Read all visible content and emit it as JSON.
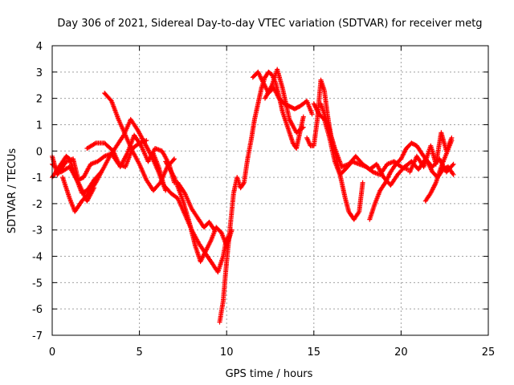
{
  "chart_data": {
    "type": "scatter",
    "title": "Day 306 of 2021, Sidereal Day-to-day VTEC variation (SDTVAR) for receiver metg",
    "xlabel": "GPS time / hours",
    "ylabel": "SDTVAR / TECUs",
    "xlim": [
      0,
      25
    ],
    "ylim": [
      -7,
      4
    ],
    "xticks": [
      "0",
      "5",
      "10",
      "15",
      "20",
      "25"
    ],
    "yticks": [
      "-7",
      "-6",
      "-5",
      "-4",
      "-3",
      "-2",
      "-1",
      "0",
      "1",
      "2",
      "3",
      "4"
    ],
    "grid": true,
    "marker": "+",
    "series": [
      {
        "name": "SDTVAR",
        "color": "#ff0000",
        "tracks": [
          [
            [
              0.0,
              -0.2
            ],
            [
              0.3,
              -0.9
            ],
            [
              0.8,
              -0.4
            ],
            [
              1.2,
              -0.3
            ],
            [
              1.5,
              -1.1
            ],
            [
              1.8,
              -1.0
            ],
            [
              2.2,
              -0.5
            ],
            [
              2.6,
              -0.4
            ],
            [
              3.0,
              -0.2
            ],
            [
              3.4,
              -0.1
            ],
            [
              3.8,
              -0.5
            ],
            [
              4.2,
              -0.6
            ],
            [
              4.6,
              0.1
            ],
            [
              5.0,
              0.3
            ],
            [
              5.4,
              0.4
            ]
          ],
          [
            [
              0.0,
              -1.0
            ],
            [
              0.4,
              -0.6
            ],
            [
              0.8,
              -0.2
            ],
            [
              1.0,
              -0.3
            ],
            [
              1.3,
              -0.9
            ],
            [
              1.7,
              -1.6
            ],
            [
              2.0,
              -1.5
            ],
            [
              2.4,
              -1.1
            ],
            [
              2.8,
              -0.8
            ]
          ],
          [
            [
              0.6,
              -1.0
            ],
            [
              1.0,
              -1.8
            ],
            [
              1.3,
              -2.3
            ],
            [
              1.7,
              -1.9
            ],
            [
              2.1,
              -1.6
            ],
            [
              2.5,
              -1.2
            ],
            [
              2.9,
              -0.7
            ],
            [
              3.3,
              -0.2
            ],
            [
              3.7,
              0.2
            ],
            [
              4.1,
              0.6
            ],
            [
              4.5,
              1.2
            ],
            [
              4.9,
              0.8
            ],
            [
              5.3,
              0.3
            ],
            [
              5.7,
              -0.2
            ],
            [
              6.1,
              -0.8
            ],
            [
              6.5,
              -1.5
            ]
          ],
          [
            [
              0.0,
              -0.5
            ],
            [
              0.5,
              -0.8
            ],
            [
              1.0,
              -0.6
            ],
            [
              1.5,
              -1.2
            ],
            [
              2.0,
              -1.9
            ],
            [
              2.4,
              -1.4
            ]
          ],
          [
            [
              3.0,
              2.2
            ],
            [
              3.4,
              1.9
            ],
            [
              3.8,
              1.2
            ],
            [
              4.2,
              0.6
            ],
            [
              4.6,
              0.0
            ],
            [
              5.0,
              -0.5
            ],
            [
              5.4,
              -1.1
            ],
            [
              5.8,
              -1.5
            ],
            [
              6.2,
              -1.2
            ],
            [
              6.6,
              -0.6
            ],
            [
              7.0,
              -0.3
            ]
          ],
          [
            [
              2.0,
              0.1
            ],
            [
              2.5,
              0.3
            ],
            [
              3.0,
              0.3
            ],
            [
              3.5,
              0.0
            ],
            [
              3.9,
              -0.6
            ],
            [
              4.3,
              -0.1
            ],
            [
              4.7,
              0.6
            ],
            [
              5.1,
              0.2
            ],
            [
              5.5,
              -0.4
            ],
            [
              5.9,
              0.1
            ],
            [
              6.3,
              0.0
            ],
            [
              6.7,
              -0.5
            ],
            [
              7.0,
              -1.2
            ]
          ],
          [
            [
              5.8,
              -0.1
            ],
            [
              6.1,
              -0.6
            ],
            [
              6.4,
              -1.3
            ],
            [
              6.8,
              -1.6
            ],
            [
              7.2,
              -1.8
            ],
            [
              7.6,
              -2.4
            ],
            [
              8.0,
              -3.0
            ],
            [
              8.4,
              -3.5
            ],
            [
              8.8,
              -3.9
            ],
            [
              9.2,
              -4.3
            ],
            [
              9.5,
              -4.6
            ],
            [
              9.8,
              -4.0
            ],
            [
              10.0,
              -3.3
            ]
          ],
          [
            [
              6.5,
              -0.4
            ],
            [
              7.0,
              -1.0
            ],
            [
              7.5,
              -1.9
            ],
            [
              7.9,
              -2.8
            ],
            [
              8.2,
              -3.6
            ],
            [
              8.5,
              -4.2
            ],
            [
              8.8,
              -3.8
            ],
            [
              9.1,
              -3.4
            ],
            [
              9.4,
              -2.9
            ],
            [
              9.7,
              -3.1
            ],
            [
              10.0,
              -3.6
            ],
            [
              10.3,
              -3.0
            ]
          ],
          [
            [
              7.2,
              -1.2
            ],
            [
              7.6,
              -1.6
            ],
            [
              8.0,
              -2.2
            ],
            [
              8.4,
              -2.6
            ],
            [
              8.7,
              -2.9
            ],
            [
              9.0,
              -2.7
            ],
            [
              9.3,
              -3.0
            ]
          ],
          [
            [
              9.6,
              -6.5
            ],
            [
              9.8,
              -5.7
            ],
            [
              10.0,
              -4.2
            ],
            [
              10.2,
              -2.9
            ],
            [
              10.4,
              -1.6
            ],
            [
              10.6,
              -1.0
            ],
            [
              10.8,
              -1.4
            ],
            [
              11.0,
              -1.2
            ],
            [
              11.2,
              -0.3
            ],
            [
              11.4,
              0.4
            ],
            [
              11.6,
              1.2
            ],
            [
              11.8,
              1.8
            ],
            [
              12.0,
              2.4
            ],
            [
              12.2,
              2.8
            ],
            [
              12.4,
              3.0
            ],
            [
              12.6,
              2.9
            ],
            [
              12.8,
              2.6
            ],
            [
              13.0,
              2.1
            ],
            [
              13.2,
              1.5
            ],
            [
              13.5,
              0.9
            ],
            [
              13.8,
              0.3
            ],
            [
              14.0,
              0.1
            ],
            [
              14.2,
              0.7
            ],
            [
              14.4,
              1.3
            ]
          ],
          [
            [
              11.5,
              2.8
            ],
            [
              11.8,
              3.0
            ],
            [
              12.1,
              2.6
            ],
            [
              12.4,
              2.2
            ],
            [
              12.7,
              2.4
            ],
            [
              13.0,
              2.0
            ],
            [
              13.3,
              1.8
            ],
            [
              13.6,
              1.7
            ],
            [
              13.9,
              1.6
            ],
            [
              14.2,
              1.7
            ],
            [
              14.6,
              1.9
            ],
            [
              14.9,
              1.4
            ]
          ],
          [
            [
              12.2,
              2.0
            ],
            [
              12.6,
              2.5
            ],
            [
              12.9,
              3.1
            ],
            [
              13.2,
              2.4
            ],
            [
              13.6,
              1.2
            ],
            [
              14.0,
              0.7
            ],
            [
              14.4,
              0.9
            ]
          ],
          [
            [
              14.6,
              0.5
            ],
            [
              14.8,
              0.2
            ],
            [
              15.0,
              0.2
            ],
            [
              15.2,
              1.2
            ],
            [
              15.4,
              2.7
            ],
            [
              15.6,
              2.3
            ],
            [
              15.8,
              1.3
            ],
            [
              16.0,
              0.5
            ],
            [
              16.2,
              0.0
            ],
            [
              16.4,
              -0.6
            ],
            [
              16.6,
              -1.2
            ],
            [
              16.8,
              -1.8
            ],
            [
              17.0,
              -2.3
            ],
            [
              17.3,
              -2.6
            ],
            [
              17.6,
              -2.3
            ],
            [
              17.8,
              -1.2
            ]
          ],
          [
            [
              15.0,
              1.8
            ],
            [
              15.3,
              1.4
            ],
            [
              15.6,
              1.2
            ],
            [
              15.9,
              0.5
            ],
            [
              16.2,
              -0.4
            ],
            [
              16.5,
              -0.9
            ],
            [
              16.8,
              -0.7
            ],
            [
              17.2,
              -0.4
            ],
            [
              17.6,
              -0.5
            ],
            [
              18.0,
              -0.6
            ],
            [
              18.4,
              -0.8
            ],
            [
              18.8,
              -0.9
            ],
            [
              19.2,
              -0.5
            ],
            [
              19.6,
              -0.4
            ],
            [
              20.0,
              -0.6
            ],
            [
              20.4,
              -0.7
            ]
          ],
          [
            [
              15.4,
              1.8
            ],
            [
              15.8,
              1.0
            ],
            [
              16.2,
              0.1
            ],
            [
              16.6,
              -0.6
            ],
            [
              17.0,
              -0.5
            ],
            [
              17.4,
              -0.2
            ],
            [
              17.8,
              -0.5
            ],
            [
              18.2,
              -0.7
            ],
            [
              18.6,
              -0.5
            ],
            [
              19.0,
              -1.0
            ],
            [
              19.4,
              -1.3
            ],
            [
              19.8,
              -0.9
            ],
            [
              20.2,
              -0.6
            ],
            [
              20.6,
              -0.4
            ],
            [
              21.0,
              -0.7
            ],
            [
              21.4,
              -0.3
            ],
            [
              21.8,
              -0.6
            ],
            [
              22.2,
              -0.3
            ],
            [
              22.6,
              -0.8
            ],
            [
              23.0,
              -0.5
            ]
          ],
          [
            [
              18.2,
              -2.6
            ],
            [
              18.5,
              -2.0
            ],
            [
              18.8,
              -1.5
            ],
            [
              19.1,
              -1.2
            ],
            [
              19.4,
              -0.8
            ],
            [
              19.7,
              -0.5
            ],
            [
              20.0,
              -0.3
            ],
            [
              20.3,
              0.1
            ],
            [
              20.6,
              0.3
            ],
            [
              20.9,
              0.2
            ],
            [
              21.2,
              -0.1
            ],
            [
              21.5,
              -0.4
            ],
            [
              21.8,
              -0.8
            ],
            [
              22.1,
              -1.0
            ],
            [
              22.4,
              -0.7
            ],
            [
              22.7,
              -0.6
            ],
            [
              23.0,
              -0.9
            ]
          ],
          [
            [
              21.4,
              -1.9
            ],
            [
              21.7,
              -1.6
            ],
            [
              22.0,
              -1.2
            ],
            [
              22.3,
              -0.6
            ],
            [
              22.6,
              -0.1
            ],
            [
              22.9,
              0.4
            ]
          ],
          [
            [
              20.5,
              -0.8
            ],
            [
              20.9,
              -0.2
            ],
            [
              21.3,
              -0.6
            ],
            [
              21.7,
              0.2
            ],
            [
              22.0,
              -0.5
            ],
            [
              22.3,
              0.7
            ],
            [
              22.6,
              0.0
            ],
            [
              22.9,
              0.5
            ]
          ]
        ]
      }
    ]
  }
}
